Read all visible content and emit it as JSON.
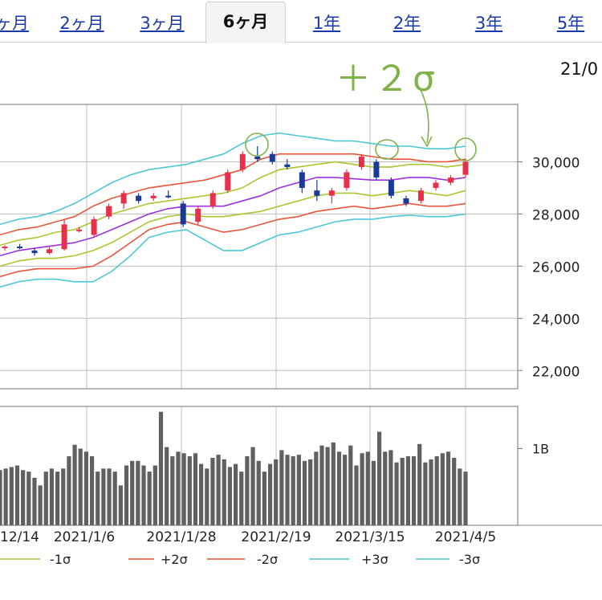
{
  "tabs": [
    {
      "label": "ヶ月",
      "active": false
    },
    {
      "label": "2ヶ月",
      "active": false
    },
    {
      "label": "3ヶ月",
      "active": false
    },
    {
      "label": "6ヶ月",
      "active": true
    },
    {
      "label": "1年",
      "active": false
    },
    {
      "label": "2年",
      "active": false
    },
    {
      "label": "3年",
      "active": false
    },
    {
      "label": "5年",
      "active": false
    }
  ],
  "annotation": "＋２σ",
  "date_label": "21/0",
  "colors": {
    "ma": "#9b32e0",
    "sigma1": "#a8c832",
    "sigma2": "#e8553a",
    "sigma3": "#4dc8d6",
    "up": "#e8304a",
    "down": "#1a3a9a",
    "volume": "#606060",
    "annotation": "#7fb34a"
  },
  "chart_data": {
    "type": "candlestick",
    "price_axis": {
      "ticks": [
        22000,
        24000,
        26000,
        28000,
        30000
      ],
      "tick_labels": [
        "22,000",
        "24,000",
        "26,000",
        "28,000",
        "30,000"
      ],
      "ylim": [
        21300,
        32200
      ]
    },
    "volume_axis": {
      "tick_labels": [
        "1B"
      ]
    },
    "x_tick_labels": [
      "12/14",
      "2021/1/6",
      "2021/1/28",
      "2021/2/19",
      "2021/3/15",
      "2021/4/5"
    ],
    "legend": [
      {
        "name": "-1σ",
        "color_key": "sigma1"
      },
      {
        "name": "+2σ",
        "color_key": "sigma2"
      },
      {
        "name": "-2σ",
        "color_key": "sigma2"
      },
      {
        "name": "+3σ",
        "color_key": "sigma3"
      },
      {
        "name": "-3σ",
        "color_key": "sigma3"
      }
    ],
    "bands": {
      "ma": [
        26400,
        26600,
        26700,
        26800,
        26900,
        27100,
        27400,
        27700,
        28000,
        28200,
        28300,
        28300,
        28300,
        28500,
        28700,
        29000,
        29200,
        29400,
        29400,
        29350,
        29300,
        29300,
        29400,
        29400,
        29300,
        29400
      ],
      "sigma1": [
        26000,
        26200,
        26300,
        26300,
        26400,
        26600,
        26900,
        27300,
        27700,
        27900,
        28000,
        27900,
        27900,
        28000,
        28100,
        28300,
        28500,
        28700,
        28800,
        28800,
        28700,
        28800,
        28900,
        28800,
        28700,
        28900
      ],
      "sigma2": [
        25600,
        25800,
        25900,
        25900,
        25900,
        26000,
        26400,
        26900,
        27400,
        27600,
        27700,
        27500,
        27300,
        27400,
        27600,
        27800,
        27900,
        28100,
        28200,
        28300,
        28200,
        28300,
        28400,
        28300,
        28300,
        28400
      ],
      "sigma3": [
        25200,
        25400,
        25500,
        25500,
        25400,
        25400,
        25800,
        26400,
        27100,
        27300,
        27400,
        27000,
        26600,
        26600,
        26900,
        27200,
        27300,
        27500,
        27700,
        27800,
        27800,
        27900,
        27950,
        27900,
        27900,
        28000
      ],
      "p1": [
        26800,
        27000,
        27100,
        27300,
        27400,
        27700,
        28000,
        28200,
        28400,
        28500,
        28600,
        28700,
        28800,
        29000,
        29400,
        29700,
        29800,
        29900,
        30000,
        29900,
        29800,
        29800,
        29900,
        29900,
        29800,
        29900
      ],
      "p2": [
        27200,
        27400,
        27500,
        27700,
        27900,
        28300,
        28600,
        28800,
        29000,
        29100,
        29200,
        29300,
        29500,
        29700,
        30100,
        30300,
        30300,
        30300,
        30300,
        30300,
        30200,
        30100,
        30100,
        30000,
        30000,
        30100
      ],
      "p3": [
        27600,
        27800,
        27900,
        28100,
        28400,
        28800,
        29200,
        29500,
        29700,
        29800,
        29900,
        30100,
        30300,
        30700,
        31000,
        31100,
        31000,
        30900,
        30800,
        30800,
        30700,
        30600,
        30600,
        30500,
        30500,
        30600
      ]
    },
    "candles": [
      {
        "o": 26700,
        "h": 26800,
        "l": 26600,
        "c": 26750
      },
      {
        "o": 26750,
        "h": 26850,
        "l": 26650,
        "c": 26700
      },
      {
        "o": 26600,
        "h": 26700,
        "l": 26400,
        "c": 26500
      },
      {
        "o": 26500,
        "h": 26750,
        "l": 26450,
        "c": 26650
      },
      {
        "o": 26650,
        "h": 27800,
        "l": 26600,
        "c": 27600
      },
      {
        "o": 27400,
        "h": 27500,
        "l": 27300,
        "c": 27400
      },
      {
        "o": 27200,
        "h": 27900,
        "l": 27100,
        "c": 27800
      },
      {
        "o": 27900,
        "h": 28400,
        "l": 27800,
        "c": 28300
      },
      {
        "o": 28400,
        "h": 28900,
        "l": 28200,
        "c": 28800
      },
      {
        "o": 28700,
        "h": 28800,
        "l": 28400,
        "c": 28500
      },
      {
        "o": 28600,
        "h": 28800,
        "l": 28500,
        "c": 28700
      },
      {
        "o": 28700,
        "h": 28900,
        "l": 28600,
        "c": 28650
      },
      {
        "o": 28400,
        "h": 28500,
        "l": 27500,
        "c": 27600
      },
      {
        "o": 27700,
        "h": 28300,
        "l": 27600,
        "c": 28200
      },
      {
        "o": 28300,
        "h": 28900,
        "l": 28200,
        "c": 28800
      },
      {
        "o": 28900,
        "h": 29700,
        "l": 28800,
        "c": 29600
      },
      {
        "o": 29700,
        "h": 30400,
        "l": 29600,
        "c": 30300
      },
      {
        "o": 30200,
        "h": 30600,
        "l": 30000,
        "c": 30100
      },
      {
        "o": 30300,
        "h": 30400,
        "l": 29900,
        "c": 30000
      },
      {
        "o": 29900,
        "h": 30100,
        "l": 29700,
        "c": 29800
      },
      {
        "o": 29600,
        "h": 29700,
        "l": 28800,
        "c": 29000
      },
      {
        "o": 28900,
        "h": 29300,
        "l": 28500,
        "c": 28700
      },
      {
        "o": 28700,
        "h": 29000,
        "l": 28400,
        "c": 28900
      },
      {
        "o": 29000,
        "h": 29700,
        "l": 28900,
        "c": 29600
      },
      {
        "o": 29800,
        "h": 30300,
        "l": 29700,
        "c": 30200
      },
      {
        "o": 30000,
        "h": 30100,
        "l": 29300,
        "c": 29400
      },
      {
        "o": 29300,
        "h": 29400,
        "l": 28600,
        "c": 28700
      },
      {
        "o": 28600,
        "h": 28700,
        "l": 28300,
        "c": 28400
      },
      {
        "o": 28500,
        "h": 29000,
        "l": 28400,
        "c": 28900
      },
      {
        "o": 29000,
        "h": 29300,
        "l": 28900,
        "c": 29200
      },
      {
        "o": 29200,
        "h": 29500,
        "l": 29100,
        "c": 29400
      },
      {
        "o": 29500,
        "h": 30100,
        "l": 29400,
        "c": 30000
      }
    ],
    "volume_max": 1.55,
    "volumes": [
      0.72,
      0.74,
      0.76,
      0.78,
      0.72,
      0.7,
      0.62,
      0.52,
      0.7,
      0.74,
      0.7,
      0.74,
      0.9,
      1.05,
      1.0,
      0.96,
      0.9,
      0.7,
      0.74,
      0.74,
      0.7,
      0.52,
      0.78,
      0.84,
      0.84,
      0.78,
      0.7,
      0.78,
      1.48,
      1.02,
      0.9,
      0.96,
      0.94,
      0.9,
      0.94,
      0.8,
      0.74,
      0.88,
      0.92,
      0.86,
      0.76,
      0.8,
      0.7,
      0.9,
      1.02,
      0.84,
      0.7,
      0.8,
      0.86,
      0.98,
      0.92,
      0.9,
      0.92,
      0.84,
      0.86,
      0.96,
      1.04,
      1.02,
      1.08,
      0.96,
      0.92,
      1.04,
      0.78,
      0.94,
      0.96,
      0.84,
      1.22,
      0.96,
      0.98,
      0.82,
      0.88,
      0.9,
      0.9,
      1.06,
      0.82,
      0.86,
      0.9,
      0.94,
      0.96,
      0.88,
      0.74,
      0.7
    ]
  }
}
